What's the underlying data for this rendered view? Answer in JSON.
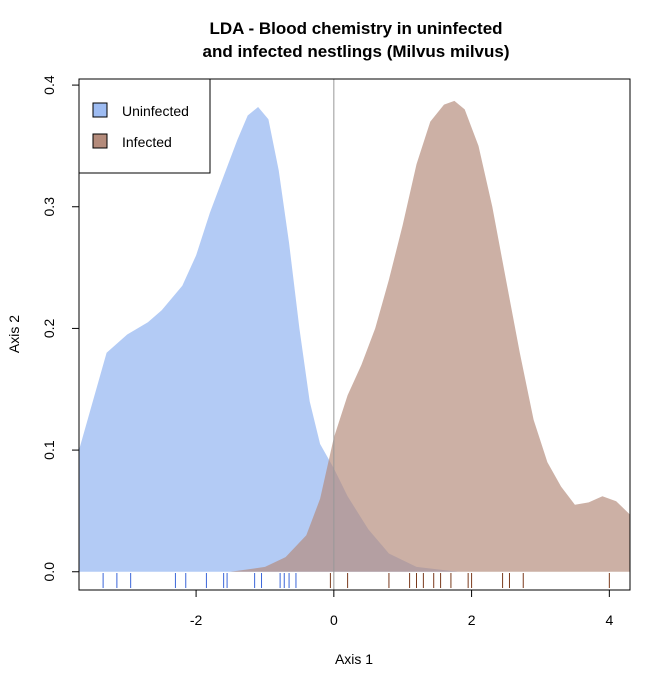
{
  "chart_data": {
    "type": "area",
    "title_line1": "LDA - Blood chemistry in uninfected",
    "title_line2": "and infected nestlings (Milvus milvus)",
    "xlabel": "Axis 1",
    "ylabel": "Axis 2",
    "xlim": [
      -3.7,
      4.3
    ],
    "ylim": [
      -0.015,
      0.405
    ],
    "x_ticks": [
      {
        "value": -2,
        "label": "-2"
      },
      {
        "value": 0,
        "label": "0"
      },
      {
        "value": 2,
        "label": "2"
      },
      {
        "value": 4,
        "label": "4"
      }
    ],
    "y_ticks": [
      {
        "value": 0.0,
        "label": "0.0"
      },
      {
        "value": 0.1,
        "label": "0.1"
      },
      {
        "value": 0.2,
        "label": "0.2"
      },
      {
        "value": 0.3,
        "label": "0.3"
      },
      {
        "value": 0.4,
        "label": "0.4"
      }
    ],
    "vline": 0,
    "legend_position": "top-left",
    "series": [
      {
        "name": "Uninfected",
        "color": "#9ebcf2",
        "opacity": 0.78,
        "rug_color": "#3b66d9",
        "rug": [
          -3.35,
          -3.15,
          -2.95,
          -2.3,
          -2.15,
          -1.85,
          -1.6,
          -1.55,
          -1.15,
          -1.05,
          -0.78,
          -0.72,
          -0.65,
          -0.55
        ],
        "density": [
          [
            -3.7,
            0.1
          ],
          [
            -3.5,
            0.14
          ],
          [
            -3.3,
            0.18
          ],
          [
            -3.0,
            0.195
          ],
          [
            -2.7,
            0.205
          ],
          [
            -2.5,
            0.215
          ],
          [
            -2.2,
            0.235
          ],
          [
            -2.0,
            0.26
          ],
          [
            -1.8,
            0.295
          ],
          [
            -1.6,
            0.325
          ],
          [
            -1.4,
            0.355
          ],
          [
            -1.25,
            0.375
          ],
          [
            -1.1,
            0.382
          ],
          [
            -0.95,
            0.372
          ],
          [
            -0.8,
            0.33
          ],
          [
            -0.65,
            0.27
          ],
          [
            -0.5,
            0.2
          ],
          [
            -0.35,
            0.14
          ],
          [
            -0.2,
            0.105
          ],
          [
            0.0,
            0.085
          ],
          [
            0.2,
            0.062
          ],
          [
            0.5,
            0.035
          ],
          [
            0.8,
            0.015
          ],
          [
            1.2,
            0.004
          ],
          [
            1.8,
            0.0
          ],
          [
            4.3,
            0.0
          ]
        ]
      },
      {
        "name": "Infected",
        "color": "#b48b7b",
        "opacity": 0.68,
        "rug_color": "#7a3a1c",
        "rug": [
          -0.05,
          0.2,
          0.8,
          1.1,
          1.2,
          1.3,
          1.45,
          1.55,
          1.7,
          1.95,
          2.0,
          2.45,
          2.55,
          2.75,
          4.0
        ],
        "density": [
          [
            -3.7,
            0.0
          ],
          [
            -1.5,
            0.0
          ],
          [
            -1.0,
            0.004
          ],
          [
            -0.7,
            0.012
          ],
          [
            -0.4,
            0.03
          ],
          [
            -0.2,
            0.06
          ],
          [
            0.0,
            0.11
          ],
          [
            0.2,
            0.145
          ],
          [
            0.4,
            0.17
          ],
          [
            0.6,
            0.2
          ],
          [
            0.8,
            0.24
          ],
          [
            1.0,
            0.285
          ],
          [
            1.2,
            0.335
          ],
          [
            1.4,
            0.37
          ],
          [
            1.6,
            0.384
          ],
          [
            1.75,
            0.387
          ],
          [
            1.9,
            0.38
          ],
          [
            2.1,
            0.35
          ],
          [
            2.3,
            0.3
          ],
          [
            2.5,
            0.24
          ],
          [
            2.7,
            0.18
          ],
          [
            2.9,
            0.125
          ],
          [
            3.1,
            0.09
          ],
          [
            3.3,
            0.07
          ],
          [
            3.5,
            0.055
          ],
          [
            3.7,
            0.057
          ],
          [
            3.9,
            0.062
          ],
          [
            4.1,
            0.058
          ],
          [
            4.3,
            0.047
          ]
        ]
      }
    ]
  }
}
